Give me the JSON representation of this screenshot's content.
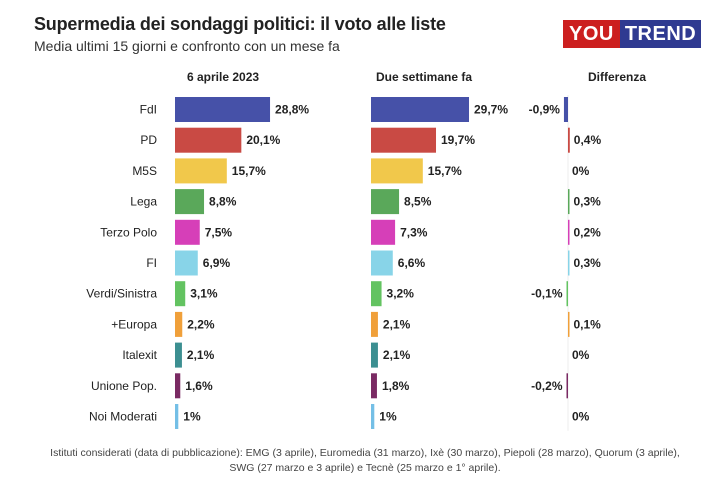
{
  "header": {
    "title": "Supermedia dei sondaggi politici: il voto alle liste",
    "subtitle": "Media ultimi 15 giorni e confronto con un mese fa",
    "logo_you": "YOU",
    "logo_trend": "TREND"
  },
  "columns": {
    "current": "6 aprile 2023",
    "previous": "Due settimane fa",
    "difference": "Differenza"
  },
  "footnote": "Istituti considerati (data di pubblicazione): EMG (3 aprile), Euromedia (31 marzo), Ixè (30 marzo), Piepoli (28 marzo), Quorum (3 aprile), SWG (27 marzo e 3 aprile) e Tecnè (25 marzo e 1° aprile).",
  "colors": {
    "FdI": "#4651a8",
    "PD": "#c94a44",
    "M5S": "#f1c84b",
    "Lega": "#5aa85a",
    "Terzo Polo": "#d63fb8",
    "FI": "#88d4e8",
    "Verdi/Sinistra": "#63c361",
    "+Europa": "#f0a03a",
    "Italexit": "#3c8f91",
    "Unione Pop.": "#7a2a63",
    "Noi Moderati": "#74bfe6"
  },
  "chart_data": {
    "type": "bar",
    "categories": [
      "FdI",
      "PD",
      "M5S",
      "Lega",
      "Terzo Polo",
      "FI",
      "Verdi/Sinistra",
      "+Europa",
      "Italexit",
      "Unione Pop.",
      "Noi Moderati"
    ],
    "series": [
      {
        "name": "6 aprile 2023",
        "values": [
          28.8,
          20.1,
          15.7,
          8.8,
          7.5,
          6.9,
          3.1,
          2.2,
          2.1,
          1.6,
          1
        ],
        "labels": [
          "28,8%",
          "20,1%",
          "15,7%",
          "8,8%",
          "7,5%",
          "6,9%",
          "3,1%",
          "2,2%",
          "2,1%",
          "1,6%",
          "1%"
        ]
      },
      {
        "name": "Due settimane fa",
        "values": [
          29.7,
          19.7,
          15.7,
          8.5,
          7.3,
          6.6,
          3.2,
          2.1,
          2.1,
          1.8,
          1
        ],
        "labels": [
          "29,7%",
          "19,7%",
          "15,7%",
          "8,5%",
          "7,3%",
          "6,6%",
          "3,2%",
          "2,1%",
          "2,1%",
          "1,8%",
          "1%"
        ]
      },
      {
        "name": "Differenza",
        "values": [
          -0.9,
          0.4,
          0,
          0.3,
          0.2,
          0.3,
          -0.1,
          0.1,
          0,
          -0.2,
          0
        ],
        "labels": [
          "-0,9%",
          "0,4%",
          "0%",
          "0,3%",
          "0,2%",
          "0,3%",
          "-0,1%",
          "0,1%",
          "0%",
          "-0,2%",
          "0%"
        ]
      }
    ],
    "xlim": [
      0,
      30
    ],
    "diff_lim": [
      -1,
      1
    ]
  }
}
